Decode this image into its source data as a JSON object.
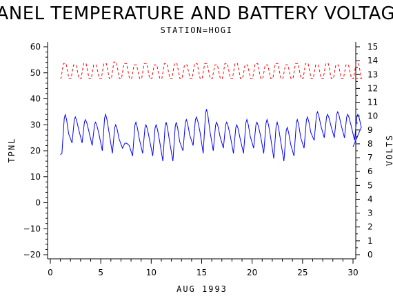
{
  "chart_data": {
    "type": "line",
    "title": "PANEL TEMPERATURE AND BATTERY VOLTAGE",
    "subtitle": "STATION=HOGI",
    "xlabel": "AUG 1993",
    "ylabel_left": "TPNL",
    "ylabel_right": "VOLTS",
    "xlim": [
      0,
      30
    ],
    "ylim_left": [
      -20,
      60
    ],
    "ylim_right": [
      0,
      15
    ],
    "x_ticks": [
      0,
      5,
      10,
      15,
      20,
      25,
      30
    ],
    "x_tick_labels": [
      "0",
      "5",
      "10",
      "15",
      "20",
      "25",
      "30"
    ],
    "y_left_ticks": [
      -20,
      -10,
      0,
      10,
      20,
      30,
      40,
      50,
      60
    ],
    "y_left_tick_labels": [
      "−20",
      "−10",
      "0",
      "10",
      "20",
      "30",
      "40",
      "50",
      "60"
    ],
    "y_right_ticks": [
      0,
      1,
      2,
      3,
      4,
      5,
      6,
      7,
      8,
      9,
      10,
      11,
      12,
      13,
      14,
      15
    ],
    "y_right_tick_labels": [
      "0",
      "1",
      "2",
      "3",
      "4",
      "5",
      "6",
      "7",
      "8",
      "9",
      "10",
      "11",
      "12",
      "13",
      "14",
      "15"
    ],
    "grid": false,
    "series": [
      {
        "axis": "left",
        "color": "#0000ff",
        "dashed": false,
        "daily_min": [
          19,
          23,
          23,
          22,
          20,
          19,
          21,
          18,
          19,
          18,
          16,
          16,
          20,
          22,
          19,
          20,
          21,
          19,
          19,
          21,
          19,
          17,
          16,
          18,
          21,
          24,
          25,
          25,
          25,
          24
        ],
        "daily_max": [
          34,
          33,
          32,
          31,
          34,
          30,
          23,
          31,
          30,
          30,
          31,
          31,
          32,
          33,
          36,
          31,
          31,
          30,
          32,
          31,
          32,
          31,
          29,
          32,
          33,
          35,
          34,
          35,
          34,
          34
        ],
        "start_value": 18.5,
        "end_value": 21.5
      },
      {
        "axis": "right",
        "color": "#ff0000",
        "dashed": true,
        "daily_min": [
          12.7,
          12.7,
          12.7,
          12.7,
          12.7,
          12.7,
          12.7,
          12.7,
          12.7,
          12.7,
          12.7,
          12.7,
          12.7,
          12.7,
          12.7,
          12.7,
          12.7,
          12.7,
          12.7,
          12.7,
          12.7,
          12.7,
          12.7,
          12.7,
          12.7,
          12.7,
          12.7,
          12.7,
          12.7,
          12.7
        ],
        "daily_max": [
          13.8,
          13.7,
          13.8,
          13.7,
          13.8,
          13.9,
          13.8,
          13.7,
          13.8,
          13.7,
          13.8,
          13.8,
          13.7,
          13.8,
          13.8,
          13.7,
          13.8,
          13.8,
          13.7,
          13.8,
          13.7,
          13.8,
          13.7,
          13.8,
          13.8,
          13.7,
          13.8,
          13.7,
          13.7,
          13.8
        ],
        "start_value": 12.7,
        "end_value": 12.7
      }
    ]
  }
}
